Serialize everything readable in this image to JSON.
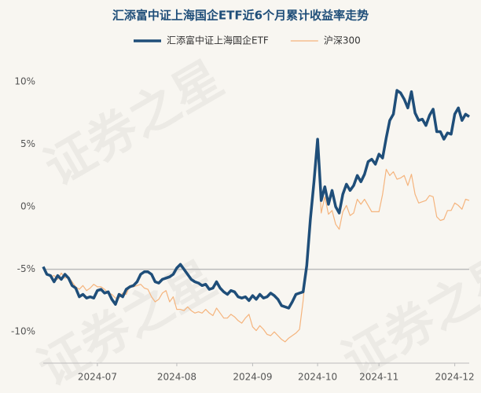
{
  "chart_data": {
    "type": "line",
    "title": "汇添富中证上海国企ETF近6个月累计收益率走势",
    "watermark": "证券之星",
    "categories": [
      null,
      null,
      null,
      null,
      null,
      null,
      null,
      null,
      null,
      null,
      null,
      null,
      null,
      null,
      null,
      "2024-07",
      null,
      null,
      null,
      null,
      null,
      null,
      null,
      null,
      null,
      null,
      null,
      null,
      null,
      null,
      null,
      null,
      null,
      null,
      null,
      null,
      null,
      "2024-08",
      null,
      null,
      null,
      null,
      null,
      null,
      null,
      null,
      null,
      null,
      null,
      null,
      null,
      null,
      null,
      null,
      null,
      null,
      null,
      null,
      "2024-09",
      null,
      null,
      null,
      null,
      null,
      null,
      null,
      null,
      null,
      null,
      null,
      null,
      null,
      null,
      null,
      null,
      null,
      "2024-10",
      null,
      null,
      null,
      null,
      null,
      null,
      null,
      null,
      null,
      null,
      null,
      null,
      null,
      null,
      null,
      null,
      "2024-11",
      null,
      null,
      null,
      null,
      null,
      null,
      null,
      null,
      null,
      null,
      null,
      null,
      null,
      null,
      null,
      null,
      null,
      null,
      null,
      null,
      "2024-12",
      null,
      null,
      null,
      null
    ],
    "series": [
      {
        "name": "汇添富中证上海国企ETF",
        "color": "#1f4e79",
        "width": 3.5,
        "values": [
          -4.8,
          -5.4,
          -5.5,
          -6.0,
          -5.5,
          -5.8,
          -5.4,
          -5.7,
          -6.3,
          -6.5,
          -7.2,
          -7.0,
          -7.3,
          -7.2,
          -7.3,
          -6.7,
          -6.6,
          -6.9,
          -6.8,
          -7.4,
          -7.8,
          -7.0,
          -7.2,
          -6.6,
          -6.4,
          -6.3,
          -6.0,
          -5.4,
          -5.2,
          -5.2,
          -5.4,
          -6.0,
          -6.1,
          -5.8,
          -5.7,
          -5.6,
          -5.4,
          -4.9,
          -4.6,
          -5.0,
          -5.4,
          -5.8,
          -6.0,
          -6.1,
          -6.3,
          -6.2,
          -6.6,
          -6.5,
          -6.0,
          -6.5,
          -6.8,
          -7.0,
          -6.7,
          -6.8,
          -7.2,
          -7.3,
          -7.2,
          -7.5,
          -7.1,
          -7.4,
          -7.0,
          -7.3,
          -7.2,
          -6.9,
          -7.1,
          -7.4,
          -7.9,
          -8.0,
          -8.1,
          -7.6,
          -7.0,
          -6.9,
          -6.8,
          -4.7,
          -1.0,
          2.0,
          5.4,
          0.5,
          1.6,
          0.2,
          1.3,
          0.0,
          -0.5,
          1.0,
          1.8,
          1.3,
          1.7,
          2.5,
          2.0,
          2.6,
          3.6,
          3.8,
          3.4,
          4.2,
          3.9,
          5.5,
          6.9,
          7.4,
          9.3,
          9.1,
          8.6,
          7.9,
          9.2,
          7.5,
          6.9,
          7.0,
          6.5,
          7.3,
          7.8,
          6.0,
          6.0,
          5.4,
          5.9,
          5.8,
          7.4,
          7.9,
          6.9,
          7.4,
          7.2
        ]
      },
      {
        "name": "沪深300",
        "color": "#f5b47d",
        "width": 1.2,
        "values": [
          -4.9,
          -5.3,
          -5.6,
          -5.5,
          -5.8,
          -5.3,
          -5.7,
          -5.6,
          -6.0,
          -6.4,
          -6.6,
          -6.3,
          -6.7,
          -6.5,
          -6.2,
          -6.4,
          -6.4,
          -6.6,
          -6.9,
          -7.0,
          -7.3,
          -7.3,
          -6.9,
          -7.0,
          -6.3,
          -6.4,
          -6.3,
          -6.2,
          -6.5,
          -6.6,
          -7.2,
          -7.6,
          -7.4,
          -6.9,
          -6.7,
          -7.6,
          -7.2,
          -8.2,
          -8.2,
          -8.3,
          -8.0,
          -8.3,
          -8.5,
          -8.4,
          -8.5,
          -8.2,
          -8.5,
          -8.7,
          -8.1,
          -8.5,
          -8.9,
          -8.9,
          -8.6,
          -8.8,
          -9.1,
          -9.3,
          -8.9,
          -8.6,
          -9.6,
          -9.9,
          -9.5,
          -9.8,
          -10.2,
          -10.3,
          -10.0,
          -10.3,
          -10.6,
          -10.8,
          -10.5,
          -10.3,
          -10.1,
          -9.8,
          -7.5,
          -4.3,
          -1.1,
          1.7,
          4.6,
          -0.5,
          0.8,
          -0.6,
          -0.3,
          -1.4,
          -1.8,
          -0.4,
          0.1,
          -0.7,
          -0.5,
          0.6,
          0.2,
          0.6,
          0.1,
          -0.4,
          -0.4,
          -0.4,
          1.0,
          3.0,
          2.5,
          2.8,
          2.2,
          2.3,
          2.5,
          1.7,
          2.6,
          1.0,
          0.3,
          0.4,
          0.5,
          0.9,
          0.8,
          -0.8,
          -1.1,
          -1.0,
          -0.3,
          -0.3,
          0.3,
          0.1,
          -0.2,
          0.6,
          0.5
        ]
      }
    ],
    "ylim": [
      -12.5,
      11.5
    ],
    "yticks": [
      {
        "value": -10,
        "label": "-10%"
      },
      {
        "value": -5,
        "label": "-5%"
      },
      {
        "value": 0,
        "label": "0%"
      },
      {
        "value": 5,
        "label": "5%"
      },
      {
        "value": 10,
        "label": "10%"
      }
    ],
    "reference_line": -5,
    "grid": false
  }
}
